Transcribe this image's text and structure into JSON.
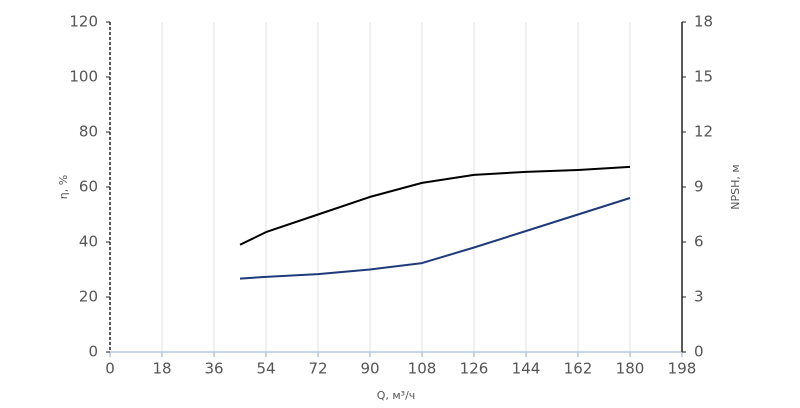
{
  "chart_data": {
    "type": "line",
    "x_label": "Q, м³/ч",
    "y_label": "η, %",
    "y2_label": "NPSH, м",
    "x": [
      45,
      54,
      72,
      90,
      108,
      126,
      144,
      162,
      180
    ],
    "series": [
      {
        "name": "η",
        "color": "#000000",
        "values": [
          39,
          43.6,
          50,
          56.4,
          61.5,
          64.4,
          65.5,
          66.2,
          67.3
        ]
      },
      {
        "name": "NPSH",
        "color": "#1f3a7a",
        "axis": "y2",
        "values": [
          4.0,
          4.1,
          4.25,
          4.5,
          4.85,
          5.7,
          6.6,
          7.5,
          8.4
        ]
      }
    ],
    "xlim": [
      0,
      198
    ],
    "xticks": [
      0,
      18,
      36,
      54,
      72,
      90,
      108,
      126,
      144,
      162,
      180,
      198
    ],
    "ylim": [
      0,
      120
    ],
    "yticks": [
      0,
      20,
      40,
      60,
      80,
      100,
      120
    ],
    "y2lim": [
      0,
      18
    ],
    "y2ticks": [
      0,
      3,
      6,
      9,
      12,
      15,
      18
    ],
    "grid": true
  }
}
